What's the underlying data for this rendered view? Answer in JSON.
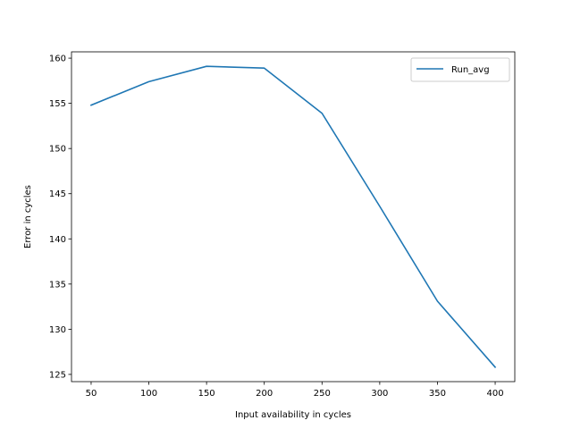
{
  "chart_data": {
    "type": "line",
    "title": "",
    "xlabel": "Input availability in cycles",
    "ylabel": "Error in cycles",
    "xlim": [
      33,
      417
    ],
    "ylim": [
      124.2,
      160.7
    ],
    "xticks": [
      50,
      100,
      150,
      200,
      250,
      300,
      350,
      400
    ],
    "yticks": [
      125,
      130,
      135,
      140,
      145,
      150,
      155,
      160
    ],
    "grid": false,
    "legend_position": "top-right",
    "series": [
      {
        "name": "Run_avg",
        "color": "#1f77b4",
        "x": [
          50,
          100,
          150,
          200,
          250,
          300,
          350,
          400
        ],
        "y": [
          154.8,
          157.4,
          159.1,
          158.9,
          153.9,
          143.6,
          133.1,
          125.8
        ]
      }
    ]
  }
}
